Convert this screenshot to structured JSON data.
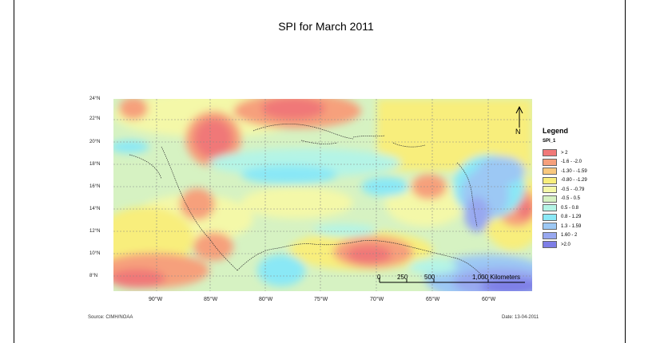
{
  "title": "SPI for March 2011",
  "map": {
    "lat_labels": [
      "24°N",
      "22°N",
      "20°N",
      "18°N",
      "16°N",
      "14°N",
      "12°N",
      "10°N",
      "8°N"
    ],
    "lon_labels": [
      "90°W",
      "85°W",
      "80°W",
      "75°W",
      "70°W",
      "65°W",
      "60°W"
    ],
    "scale_bar": [
      "0",
      "250",
      "500",
      "1,000 Kilometers"
    ],
    "north_arrow": "N"
  },
  "legend": {
    "title": "Legend",
    "field": "SPI_1",
    "items": [
      {
        "label": "> 2",
        "color": "#f07878"
      },
      {
        "label": "-1.6 - -2.0",
        "color": "#f6a07c"
      },
      {
        "label": "-1.30 - -1.59",
        "color": "#f8c87e"
      },
      {
        "label": "-0.80 - -1.29",
        "color": "#f8ee7c"
      },
      {
        "label": "-0.5 - -0.79",
        "color": "#f4f8a8"
      },
      {
        "label": "-0.5 - 0.5",
        "color": "#d6f2c2"
      },
      {
        "label": "0.5 - 0.8",
        "color": "#b4f4e6"
      },
      {
        "label": "0.8 - 1.29",
        "color": "#8ae8f6"
      },
      {
        "label": "1.3 - 1.59",
        "color": "#9cc8f4"
      },
      {
        "label": "1.60 - 2",
        "color": "#98a8f0"
      },
      {
        "label": ">2.0",
        "color": "#7e7ee6"
      }
    ]
  },
  "footer": {
    "left": "Source: CIMH/NOAA",
    "right": "Date: 13-04-2011"
  }
}
